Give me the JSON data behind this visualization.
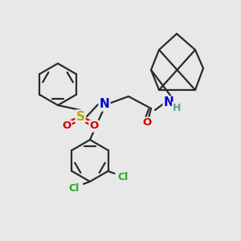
{
  "background_color": "#e8e8e8",
  "bond_color": "#2a2a2a",
  "line_width": 1.6,
  "atom_colors": {
    "N": "#0000cc",
    "O": "#cc0000",
    "S": "#bbaa00",
    "Cl": "#22aa22",
    "H": "#5f9ea0",
    "C": "#2a2a2a"
  }
}
